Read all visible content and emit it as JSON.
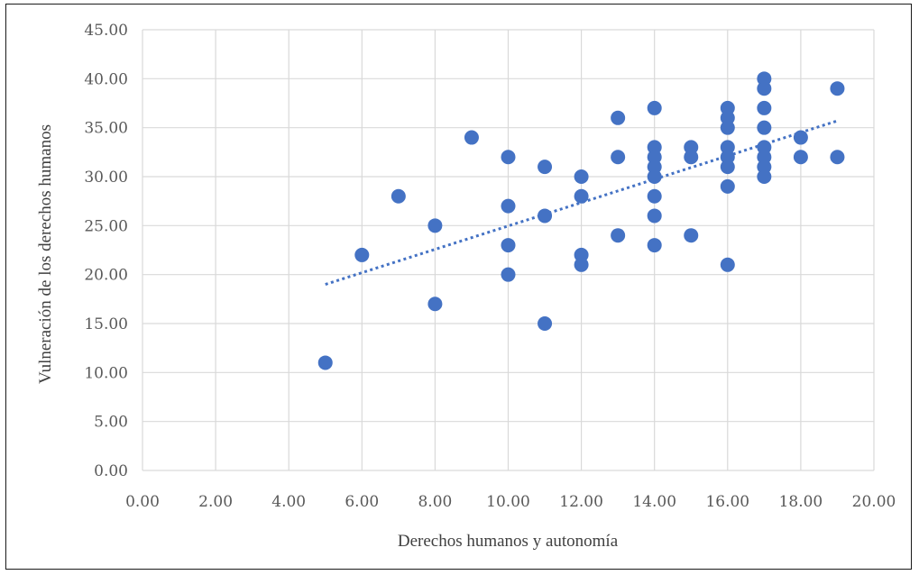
{
  "chart_data": {
    "type": "scatter",
    "title": "",
    "xlabel": "Derechos humanos y autonomía",
    "ylabel": "Vulneración de los derechos humanos",
    "xlim": [
      0,
      20
    ],
    "ylim": [
      0,
      45
    ],
    "x_ticks": [
      "0.00",
      "2.00",
      "4.00",
      "6.00",
      "8.00",
      "10.00",
      "12.00",
      "14.00",
      "16.00",
      "18.00",
      "20.00"
    ],
    "y_ticks": [
      "0.00",
      "5.00",
      "10.00",
      "15.00",
      "20.00",
      "25.00",
      "30.00",
      "35.00",
      "40.00",
      "45.00"
    ],
    "grid": true,
    "legend": "none",
    "marker_color": "#4472c4",
    "trendline": {
      "type": "linear",
      "style": "dotted",
      "x": [
        5,
        19
      ],
      "y": [
        19.0,
        35.7
      ]
    },
    "points": [
      {
        "x": 5,
        "y": 11
      },
      {
        "x": 6,
        "y": 22
      },
      {
        "x": 7,
        "y": 28
      },
      {
        "x": 8,
        "y": 25
      },
      {
        "x": 8,
        "y": 17
      },
      {
        "x": 9,
        "y": 34
      },
      {
        "x": 10,
        "y": 32
      },
      {
        "x": 10,
        "y": 27
      },
      {
        "x": 10,
        "y": 23
      },
      {
        "x": 10,
        "y": 20
      },
      {
        "x": 11,
        "y": 31
      },
      {
        "x": 11,
        "y": 26
      },
      {
        "x": 11,
        "y": 15
      },
      {
        "x": 12,
        "y": 30
      },
      {
        "x": 12,
        "y": 28
      },
      {
        "x": 12,
        "y": 22
      },
      {
        "x": 12,
        "y": 21
      },
      {
        "x": 13,
        "y": 36
      },
      {
        "x": 13,
        "y": 32
      },
      {
        "x": 13,
        "y": 24
      },
      {
        "x": 14,
        "y": 37
      },
      {
        "x": 14,
        "y": 33
      },
      {
        "x": 14,
        "y": 32
      },
      {
        "x": 14,
        "y": 31
      },
      {
        "x": 14,
        "y": 30
      },
      {
        "x": 14,
        "y": 28
      },
      {
        "x": 14,
        "y": 26
      },
      {
        "x": 14,
        "y": 23
      },
      {
        "x": 15,
        "y": 33
      },
      {
        "x": 15,
        "y": 32
      },
      {
        "x": 15,
        "y": 24
      },
      {
        "x": 16,
        "y": 37
      },
      {
        "x": 16,
        "y": 36
      },
      {
        "x": 16,
        "y": 35
      },
      {
        "x": 16,
        "y": 33
      },
      {
        "x": 16,
        "y": 32
      },
      {
        "x": 16,
        "y": 31
      },
      {
        "x": 16,
        "y": 29
      },
      {
        "x": 16,
        "y": 21
      },
      {
        "x": 17,
        "y": 40
      },
      {
        "x": 17,
        "y": 39
      },
      {
        "x": 17,
        "y": 37
      },
      {
        "x": 17,
        "y": 35
      },
      {
        "x": 17,
        "y": 33
      },
      {
        "x": 17,
        "y": 32
      },
      {
        "x": 17,
        "y": 31
      },
      {
        "x": 17,
        "y": 30
      },
      {
        "x": 18,
        "y": 34
      },
      {
        "x": 18,
        "y": 32
      },
      {
        "x": 19,
        "y": 39
      },
      {
        "x": 19,
        "y": 32
      }
    ]
  }
}
